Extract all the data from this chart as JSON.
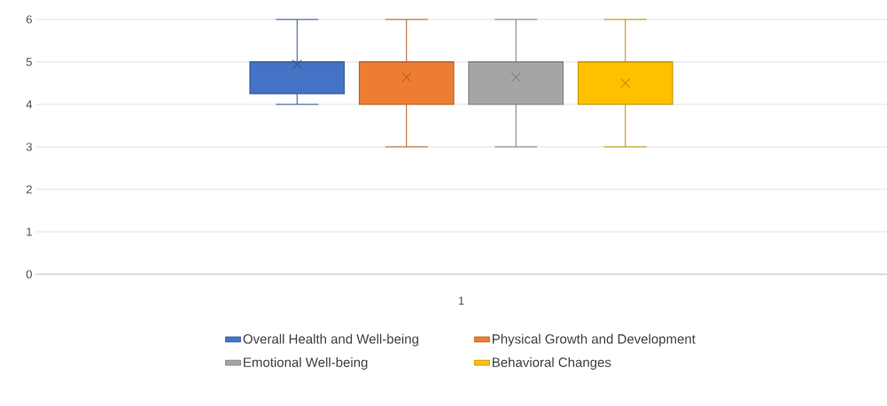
{
  "chart_data": {
    "type": "box",
    "categories": [
      "1"
    ],
    "ylim": [
      0,
      6
    ],
    "yticks": [
      0,
      1,
      2,
      3,
      4,
      5,
      6
    ],
    "grid": "y",
    "legend": "bottom",
    "series": [
      {
        "name": "Overall Health and Well-being",
        "color": "#4472c4",
        "boxes": [
          {
            "low": 4,
            "q1": 4.25,
            "median": 5,
            "q3": 5,
            "high": 6,
            "mean": 4.94
          }
        ]
      },
      {
        "name": "Physical Growth and Development",
        "color": "#ed7d31",
        "boxes": [
          {
            "low": 3,
            "q1": 4,
            "median": 5,
            "q3": 5,
            "high": 6,
            "mean": 4.64
          }
        ]
      },
      {
        "name": "Emotional Well-being",
        "color": "#a5a5a5",
        "boxes": [
          {
            "low": 3,
            "q1": 4,
            "median": 5,
            "q3": 5,
            "high": 6,
            "mean": 4.64
          }
        ]
      },
      {
        "name": "Behavioral Changes",
        "color": "#ffc000",
        "boxes": [
          {
            "low": 3,
            "q1": 4,
            "median": 5,
            "q3": 5,
            "high": 6,
            "mean": 4.5
          }
        ]
      }
    ]
  }
}
